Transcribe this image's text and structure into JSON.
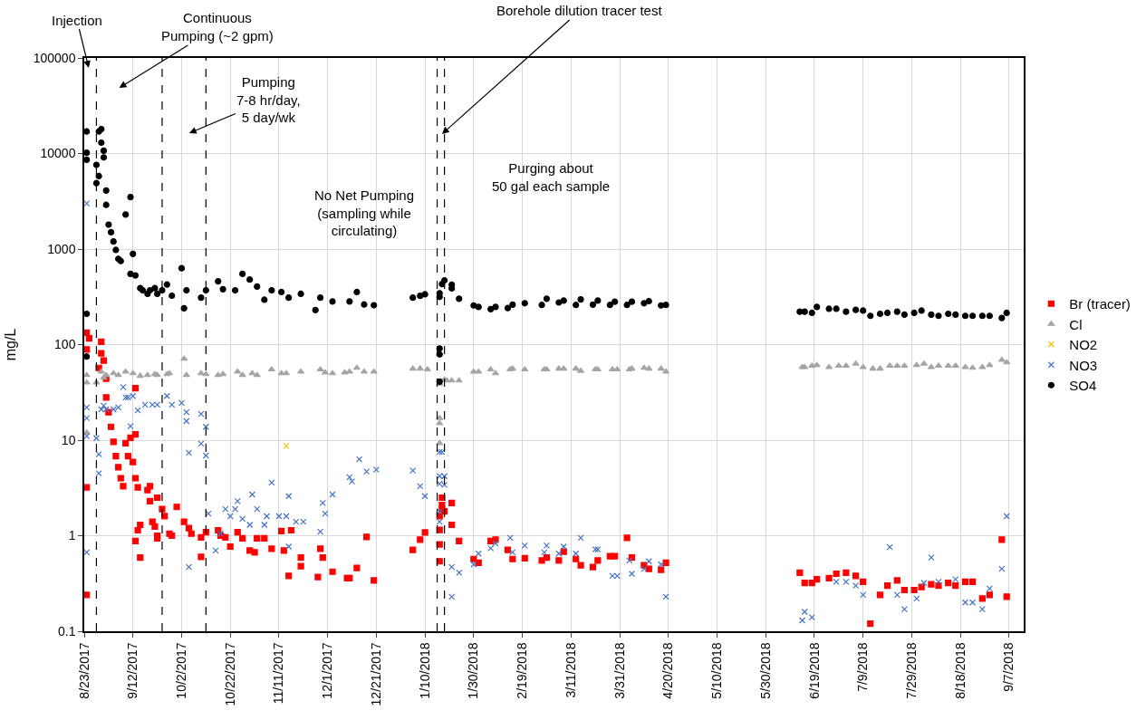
{
  "chart_data": {
    "type": "scatter",
    "ylabel": "mg/L",
    "log": "y",
    "grid": true,
    "legend": "right",
    "xlim": [
      "2017-08-23",
      "2018-09-13"
    ],
    "xticks": [
      {
        "value": "2017-08-23",
        "label": "8/23/2017"
      },
      {
        "value": "2017-09-12",
        "label": "9/12/2017"
      },
      {
        "value": "2017-10-02",
        "label": "10/2/2017"
      },
      {
        "value": "2017-10-22",
        "label": "10/22/2017"
      },
      {
        "value": "2017-11-11",
        "label": "11/11/2017"
      },
      {
        "value": "2017-12-01",
        "label": "12/1/2017"
      },
      {
        "value": "2017-12-21",
        "label": "12/21/2017"
      },
      {
        "value": "2018-01-10",
        "label": "1/10/2018"
      },
      {
        "value": "2018-01-30",
        "label": "1/30/2018"
      },
      {
        "value": "2018-02-19",
        "label": "2/19/2018"
      },
      {
        "value": "2018-03-11",
        "label": "3/11/2018"
      },
      {
        "value": "2018-03-31",
        "label": "3/31/2018"
      },
      {
        "value": "2018-04-20",
        "label": "4/20/2018"
      },
      {
        "value": "2018-05-10",
        "label": "5/10/2018"
      },
      {
        "value": "2018-05-30",
        "label": "5/30/2018"
      },
      {
        "value": "2018-06-19",
        "label": "6/19/2018"
      },
      {
        "value": "2018-07-09",
        "label": "7/9/2018"
      },
      {
        "value": "2018-07-29",
        "label": "7/29/2018"
      },
      {
        "value": "2018-08-18",
        "label": "8/18/2018"
      },
      {
        "value": "2018-09-07",
        "label": "9/7/2018"
      }
    ],
    "ylim": [
      0.1,
      100000
    ],
    "yticks": [
      0.1,
      1,
      10,
      100,
      1000,
      10000,
      100000
    ],
    "annotations": [
      "Injection",
      "Continuous\nPumping (~2 gpm)",
      "Pumping\n7-8 hr/day,\n5 day/wk",
      {
        "text": "Borehole dilution tracer test",
        "x": "2018-01-17",
        "y": 16000
      },
      "No Net Pumping\n(sampling while\ncirculating)",
      "Purging about\n50 gal each sample"
    ],
    "ref_lines": [
      {
        "axis": "x",
        "value": "2017-08-28",
        "color": "#000000",
        "line_style": "dashed"
      },
      {
        "axis": "x",
        "value": "2017-09-24",
        "color": "#000000",
        "line_style": "dashed"
      },
      {
        "axis": "x",
        "value": "2017-10-12",
        "color": "#000000",
        "line_style": "dashed"
      },
      {
        "axis": "x",
        "value": "2018-01-15",
        "color": "#000000",
        "line_style": "dashed"
      },
      {
        "axis": "x",
        "value": "2018-01-18",
        "color": "#000000",
        "line_style": "dashed"
      }
    ],
    "series": [
      {
        "name": "Br (tracer)",
        "color": "#ff0000",
        "marker": "square",
        "x": [
          "2017-08-24",
          "2017-08-24",
          "2017-08-24",
          "2017-08-24",
          "2017-08-25",
          "2017-08-29",
          "2017-08-30",
          "2017-08-30",
          "2017-08-31",
          "2017-09-01",
          "2017-09-01",
          "2017-09-02",
          "2017-09-03",
          "2017-09-04",
          "2017-09-05",
          "2017-09-06",
          "2017-09-07",
          "2017-09-08",
          "2017-09-09",
          "2017-09-10",
          "2017-09-11",
          "2017-09-12",
          "2017-09-13",
          "2017-09-13",
          "2017-09-13",
          "2017-09-14",
          "2017-09-13",
          "2017-09-14",
          "2017-09-15",
          "2017-09-15",
          "2017-09-18",
          "2017-09-19",
          "2017-09-19",
          "2017-09-20",
          "2017-09-21",
          "2017-09-22",
          "2017-09-22",
          "2017-09-22",
          "2017-09-24",
          "2017-09-25",
          "2017-09-27",
          "2017-09-28",
          "2017-09-30",
          "2017-10-03",
          "2017-10-05",
          "2017-10-06",
          "2017-10-10",
          "2017-10-10",
          "2017-10-12",
          "2017-10-17",
          "2017-10-18",
          "2017-10-20",
          "2017-10-22",
          "2017-10-25",
          "2017-10-27",
          "2017-10-30",
          "2017-11-01",
          "2017-11-02",
          "2017-11-05",
          "2017-11-08",
          "2017-11-12",
          "2017-11-13",
          "2017-11-15",
          "2017-11-16",
          "2017-11-20",
          "2017-11-20",
          "2017-11-28",
          "2017-11-27",
          "2017-11-29",
          "2017-12-03",
          "2017-12-09",
          "2017-12-10",
          "2017-12-13",
          "2017-12-17",
          "2017-12-20",
          "2018-01-05",
          "2018-01-08",
          "2018-01-10",
          "2018-01-16",
          "2018-01-16",
          "2018-01-16",
          "2018-01-17",
          "2018-01-17",
          "2018-01-17",
          "2018-01-18",
          "2018-01-16",
          "2018-01-21",
          "2018-01-21",
          "2018-01-24",
          "2018-01-30",
          "2018-02-01",
          "2018-02-06",
          "2018-02-08",
          "2018-02-13",
          "2018-02-15",
          "2018-02-20",
          "2018-02-27",
          "2018-03-01",
          "2018-03-06",
          "2018-03-08",
          "2018-03-13",
          "2018-03-15",
          "2018-03-20",
          "2018-03-22",
          "2018-03-27",
          "2018-03-29",
          "2018-04-03",
          "2018-04-05",
          "2018-04-10",
          "2018-04-12",
          "2018-04-17",
          "2018-04-19",
          "2018-06-13",
          "2018-06-15",
          "2018-06-18",
          "2018-06-20",
          "2018-06-25",
          "2018-06-28",
          "2018-07-02",
          "2018-07-06",
          "2018-07-09",
          "2018-07-12",
          "2018-07-16",
          "2018-07-19",
          "2018-07-23",
          "2018-07-26",
          "2018-07-30",
          "2018-08-02",
          "2018-08-06",
          "2018-08-09",
          "2018-08-13",
          "2018-08-16",
          "2018-08-20",
          "2018-08-23",
          "2018-08-27",
          "2018-08-30",
          "2018-09-04",
          "2018-09-06"
        ],
        "values": [
          3.2,
          0.24,
          133,
          89,
          116,
          57,
          107,
          81,
          68,
          44,
          28,
          19.6,
          13.8,
          9.6,
          6.8,
          5.2,
          4.0,
          3.3,
          9.3,
          6.8,
          10.6,
          5.9,
          35,
          11.5,
          4.0,
          3.2,
          0.88,
          1.14,
          1.3,
          0.59,
          3.0,
          3.3,
          2.3,
          1.4,
          1.25,
          1.0,
          0.94,
          2.5,
          1.9,
          1.6,
          1.05,
          1.0,
          2.0,
          1.4,
          1.2,
          1.05,
          0.96,
          0.6,
          1.09,
          1.14,
          1.0,
          0.96,
          0.77,
          1.09,
          0.94,
          0.7,
          0.67,
          0.94,
          0.94,
          0.73,
          1.12,
          0.7,
          0.38,
          1.14,
          0.59,
          0.48,
          0.73,
          0.37,
          0.59,
          0.42,
          0.36,
          0.36,
          0.46,
          0.97,
          0.34,
          0.71,
          0.91,
          1.08,
          0.81,
          0.54,
          1.15,
          1.9,
          2.5,
          2.1,
          1.8,
          1.6,
          2.2,
          1.3,
          0.88,
          0.57,
          0.52,
          0.88,
          0.91,
          0.71,
          0.57,
          0.58,
          0.55,
          0.59,
          0.55,
          0.68,
          0.57,
          0.49,
          0.47,
          0.55,
          0.61,
          0.61,
          0.95,
          0.59,
          0.49,
          0.45,
          0.44,
          0.52,
          0.41,
          0.32,
          0.32,
          0.35,
          0.36,
          0.4,
          0.41,
          0.38,
          0.33,
          0.12,
          0.24,
          0.3,
          0.34,
          0.27,
          0.27,
          0.29,
          0.31,
          0.3,
          0.32,
          0.3,
          0.33,
          0.33,
          0.22,
          0.24,
          0.91,
          0.23
        ]
      },
      {
        "name": "Cl",
        "color": "#a5a5a5",
        "marker": "triangle",
        "x": [
          "2017-08-24",
          "2017-08-24",
          "2017-08-24",
          "2017-08-28",
          "2017-08-30",
          "2017-08-31",
          "2017-09-01",
          "2017-09-04",
          "2017-09-06",
          "2017-09-09",
          "2017-09-12",
          "2017-09-15",
          "2017-09-18",
          "2017-09-21",
          "2017-09-22",
          "2017-09-26",
          "2017-09-27",
          "2017-10-03",
          "2017-10-04",
          "2017-10-10",
          "2017-10-12",
          "2017-10-17",
          "2017-10-19",
          "2017-10-25",
          "2017-10-27",
          "2017-10-31",
          "2017-11-02",
          "2017-11-08",
          "2017-11-12",
          "2017-11-14",
          "2017-11-20",
          "2017-11-28",
          "2017-11-30",
          "2017-12-03",
          "2017-12-08",
          "2017-12-10",
          "2017-12-13",
          "2017-12-16",
          "2017-12-20",
          "2018-01-05",
          "2018-01-08",
          "2018-01-11",
          "2018-01-16",
          "2018-01-16",
          "2018-01-16",
          "2018-01-16",
          "2018-01-18",
          "2018-01-19",
          "2018-01-21",
          "2018-01-24",
          "2018-01-30",
          "2018-02-01",
          "2018-02-06",
          "2018-02-08",
          "2018-02-14",
          "2018-02-15",
          "2018-02-20",
          "2018-02-28",
          "2018-03-01",
          "2018-03-06",
          "2018-03-08",
          "2018-03-13",
          "2018-03-15",
          "2018-03-21",
          "2018-03-22",
          "2018-03-28",
          "2018-03-30",
          "2018-04-04",
          "2018-04-05",
          "2018-04-10",
          "2018-04-12",
          "2018-04-17",
          "2018-04-19",
          "2018-06-14",
          "2018-06-15",
          "2018-06-18",
          "2018-06-20",
          "2018-06-25",
          "2018-06-29",
          "2018-07-02",
          "2018-07-06",
          "2018-07-09",
          "2018-07-13",
          "2018-07-16",
          "2018-07-20",
          "2018-07-23",
          "2018-07-26",
          "2018-07-31",
          "2018-08-03",
          "2018-08-06",
          "2018-08-09",
          "2018-08-13",
          "2018-08-16",
          "2018-08-20",
          "2018-08-23",
          "2018-08-27",
          "2018-08-30",
          "2018-09-04",
          "2018-09-06"
        ],
        "values": [
          48,
          40,
          12,
          40,
          52,
          45,
          48,
          50,
          48,
          52,
          50,
          47,
          48,
          49,
          48,
          49,
          50,
          71,
          48,
          50,
          49,
          48,
          49,
          52,
          48,
          50,
          48,
          55,
          50,
          50,
          52,
          55,
          51,
          50,
          51,
          52,
          57,
          52,
          52,
          56,
          56,
          55,
          9.3,
          15,
          17,
          39,
          43,
          42,
          42,
          42,
          52,
          52,
          55,
          50,
          55,
          56,
          55,
          55,
          55,
          56,
          56,
          56,
          53,
          55,
          55,
          55,
          55,
          55,
          56,
          57,
          56,
          56,
          52,
          58,
          58,
          60,
          61,
          58,
          60,
          60,
          63,
          58,
          56,
          56,
          60,
          60,
          60,
          61,
          63,
          58,
          60,
          60,
          60,
          58,
          57,
          58,
          61,
          69,
          65
        ]
      },
      {
        "name": "NO2",
        "color": "#ffc000",
        "marker": "cross",
        "x": [
          "2017-11-14"
        ],
        "values": [
          8.7
        ]
      },
      {
        "name": "NO3",
        "color": "#4472c4",
        "marker": "cross",
        "x": [
          "2017-08-24",
          "2017-08-24",
          "2017-08-24",
          "2017-08-24",
          "2017-08-24",
          "2017-08-28",
          "2017-08-29",
          "2017-08-29",
          "2017-08-30",
          "2017-08-31",
          "2017-09-01",
          "2017-09-04",
          "2017-09-06",
          "2017-09-08",
          "2017-09-09",
          "2017-09-10",
          "2017-09-11",
          "2017-09-12",
          "2017-09-14",
          "2017-09-17",
          "2017-09-20",
          "2017-09-22",
          "2017-09-26",
          "2017-09-28",
          "2017-10-02",
          "2017-10-04",
          "2017-10-04",
          "2017-10-05",
          "2017-10-05",
          "2017-10-10",
          "2017-10-10",
          "2017-10-12",
          "2017-10-12",
          "2017-10-13",
          "2017-10-16",
          "2017-10-18",
          "2017-10-20",
          "2017-10-22",
          "2017-10-24",
          "2017-10-25",
          "2017-10-27",
          "2017-10-30",
          "2017-10-31",
          "2017-11-02",
          "2017-11-05",
          "2017-11-06",
          "2017-11-08",
          "2017-11-11",
          "2017-11-14",
          "2017-11-15",
          "2017-11-15",
          "2017-11-18",
          "2017-11-21",
          "2017-11-28",
          "2017-11-29",
          "2017-11-30",
          "2017-12-03",
          "2017-12-10",
          "2017-12-11",
          "2017-12-14",
          "2017-12-17",
          "2017-12-21",
          "2018-01-05",
          "2018-01-08",
          "2018-01-10",
          "2018-01-16",
          "2018-01-17",
          "2018-01-16",
          "2018-01-16",
          "2018-01-18",
          "2018-01-18",
          "2018-01-16",
          "2018-01-16",
          "2018-01-21",
          "2018-01-24",
          "2018-01-21",
          "2018-01-30",
          "2018-02-01",
          "2018-02-06",
          "2018-02-08",
          "2018-02-14",
          "2018-02-15",
          "2018-02-20",
          "2018-02-28",
          "2018-03-01",
          "2018-03-06",
          "2018-03-08",
          "2018-03-13",
          "2018-03-15",
          "2018-03-21",
          "2018-03-22",
          "2018-03-28",
          "2018-03-30",
          "2018-04-04",
          "2018-04-05",
          "2018-04-10",
          "2018-04-12",
          "2018-04-17",
          "2018-04-19",
          "2018-06-14",
          "2018-06-15",
          "2018-06-18",
          "2018-06-28",
          "2018-07-02",
          "2018-07-06",
          "2018-07-09",
          "2018-07-20",
          "2018-07-23",
          "2018-07-26",
          "2018-07-31",
          "2018-08-03",
          "2018-08-06",
          "2018-08-09",
          "2018-08-16",
          "2018-08-20",
          "2018-08-23",
          "2018-08-27",
          "2018-08-30",
          "2018-09-04",
          "2018-09-06"
        ],
        "values": [
          3000,
          22,
          17,
          11,
          0.67,
          10.5,
          7.1,
          4.5,
          21,
          23,
          21,
          21,
          22,
          36,
          28,
          28,
          14,
          29,
          20.5,
          23.5,
          23.5,
          23.5,
          29,
          23.5,
          24.5,
          19.6,
          15.8,
          7.4,
          0.47,
          18.8,
          9.2,
          13.8,
          6.9,
          1.7,
          0.7,
          1.05,
          1.9,
          1.6,
          1.9,
          2.3,
          1.5,
          1.3,
          2.7,
          1.9,
          1.3,
          1.6,
          3.6,
          1.6,
          1.6,
          2.6,
          0.77,
          1.4,
          1.4,
          1.1,
          2.2,
          1.7,
          2.7,
          4.1,
          3.7,
          6.3,
          4.7,
          4.9,
          4.8,
          3.3,
          2.6,
          7.5,
          7.5,
          4.2,
          3.5,
          4.2,
          3.4,
          1.8,
          1.4,
          0.47,
          0.41,
          0.23,
          0.5,
          0.65,
          0.74,
          0.83,
          0.95,
          0.67,
          0.79,
          0.67,
          0.79,
          0.65,
          0.77,
          0.65,
          0.95,
          0.72,
          0.72,
          0.38,
          0.38,
          0.55,
          0.4,
          0.45,
          0.54,
          0.5,
          0.23,
          0.13,
          0.16,
          0.14,
          0.33,
          0.33,
          0.3,
          0.24,
          0.76,
          0.24,
          0.17,
          0.22,
          0.32,
          0.59,
          0.33,
          0.35,
          0.2,
          0.2,
          0.17,
          0.28,
          0.45,
          1.6
        ]
      },
      {
        "name": "SO4",
        "color": "#000000",
        "marker": "circle",
        "x": [
          "2017-08-24",
          "2017-08-24",
          "2017-08-24",
          "2017-08-24",
          "2017-08-24",
          "2017-08-28",
          "2017-08-29",
          "2017-08-30",
          "2017-08-30",
          "2017-08-31",
          "2017-08-31",
          "2017-08-29",
          "2017-08-28",
          "2017-09-01",
          "2017-09-01",
          "2017-09-02",
          "2017-09-03",
          "2017-09-04",
          "2017-09-05",
          "2017-09-06",
          "2017-09-07",
          "2017-09-09",
          "2017-09-11",
          "2017-09-12",
          "2017-09-11",
          "2017-09-13",
          "2017-09-15",
          "2017-09-16",
          "2017-09-18",
          "2017-09-19",
          "2017-09-21",
          "2017-09-22",
          "2017-09-24",
          "2017-09-26",
          "2017-09-28",
          "2017-10-02",
          "2017-10-03",
          "2017-10-04",
          "2017-10-10",
          "2017-10-12",
          "2017-10-17",
          "2017-10-19",
          "2017-10-24",
          "2017-10-27",
          "2017-10-30",
          "2017-11-02",
          "2017-11-05",
          "2017-11-08",
          "2017-11-12",
          "2017-11-15",
          "2017-11-20",
          "2017-11-26",
          "2017-11-28",
          "2017-12-03",
          "2017-12-10",
          "2017-12-13",
          "2017-12-16",
          "2017-12-20",
          "2018-01-05",
          "2018-01-08",
          "2018-01-10",
          "2018-01-16",
          "2018-01-16",
          "2018-01-17",
          "2018-01-18",
          "2018-01-21",
          "2018-01-21",
          "2018-01-24",
          "2018-01-30",
          "2018-02-01",
          "2018-02-06",
          "2018-02-08",
          "2018-02-13",
          "2018-02-15",
          "2018-02-20",
          "2018-02-27",
          "2018-03-01",
          "2018-03-06",
          "2018-03-08",
          "2018-03-13",
          "2018-03-15",
          "2018-03-20",
          "2018-03-22",
          "2018-03-27",
          "2018-03-29",
          "2018-04-03",
          "2018-04-05",
          "2018-04-10",
          "2018-04-12",
          "2018-04-17",
          "2018-04-19",
          "2018-01-16",
          "2018-01-16",
          "2018-01-16",
          "2018-06-13",
          "2018-06-15",
          "2018-06-18",
          "2018-06-20",
          "2018-06-25",
          "2018-06-28",
          "2018-07-02",
          "2018-07-06",
          "2018-07-09",
          "2018-07-12",
          "2018-07-16",
          "2018-07-19",
          "2018-07-23",
          "2018-07-26",
          "2018-07-30",
          "2018-08-02",
          "2018-08-06",
          "2018-08-09",
          "2018-08-13",
          "2018-08-16",
          "2018-08-20",
          "2018-08-23",
          "2018-08-27",
          "2018-08-30",
          "2018-09-04",
          "2018-09-06"
        ],
        "values": [
          17000,
          10200,
          8600,
          210,
          75,
          7600,
          17000,
          18000,
          13000,
          10700,
          9100,
          5800,
          4900,
          4100,
          2900,
          1800,
          1500,
          1200,
          980,
          790,
          750,
          2300,
          3500,
          890,
          550,
          530,
          390,
          370,
          340,
          370,
          390,
          340,
          370,
          425,
          325,
          630,
          240,
          370,
          310,
          370,
          460,
          380,
          370,
          550,
          480,
          405,
          295,
          370,
          355,
          310,
          340,
          230,
          310,
          283,
          283,
          355,
          263,
          258,
          310,
          324,
          336,
          316,
          345,
          430,
          471,
          423,
          387,
          302,
          257,
          248,
          235,
          248,
          241,
          262,
          271,
          260,
          302,
          276,
          289,
          260,
          297,
          262,
          289,
          260,
          281,
          260,
          281,
          271,
          285,
          257,
          260,
          91,
          79,
          41,
          221,
          221,
          215,
          248,
          237,
          237,
          221,
          231,
          227,
          200,
          210,
          215,
          221,
          206,
          215,
          227,
          206,
          200,
          210,
          206,
          200,
          200,
          200,
          200,
          190,
          215
        ]
      }
    ]
  }
}
